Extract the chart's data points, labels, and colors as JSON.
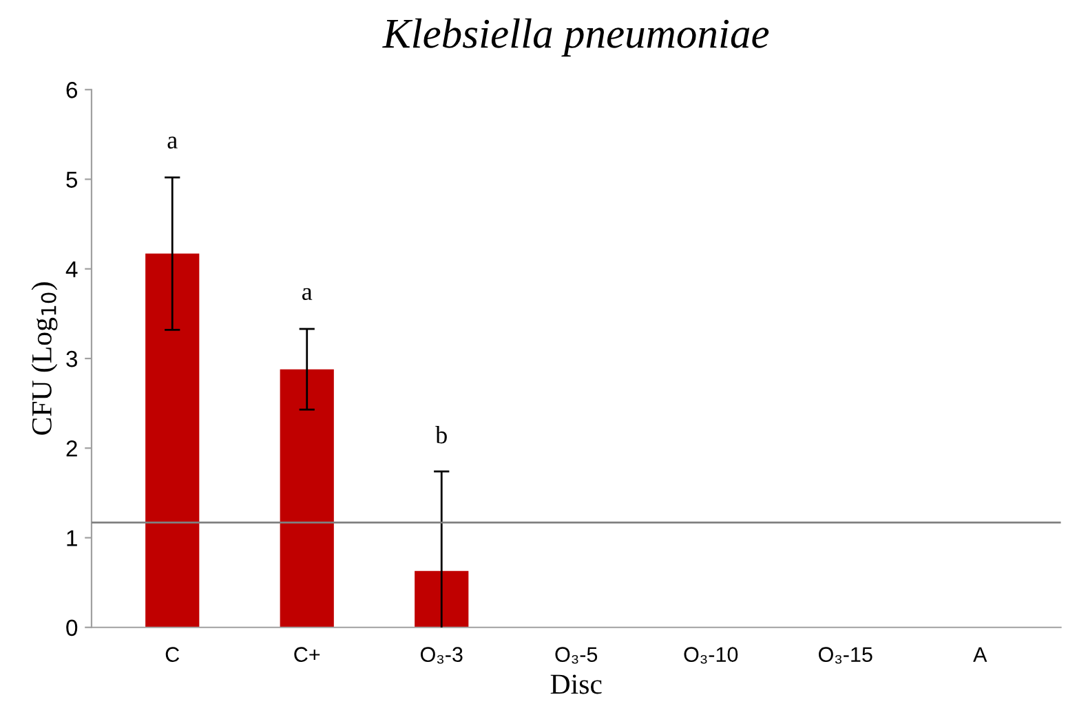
{
  "chart_data": {
    "type": "bar",
    "title": "Klebsiella pneumoniae",
    "xlabel": "Disc",
    "ylabel": "CFU (Log$_{10}$)",
    "categories": [
      "C",
      "C+",
      "O₃-3",
      "O₃-5",
      "O₃-10",
      "O₃-15",
      "A"
    ],
    "values": [
      4.17,
      2.88,
      0.63,
      0,
      0,
      0,
      0
    ],
    "errors": [
      0.85,
      0.45,
      1.11,
      null,
      null,
      null,
      null
    ],
    "color": "#c00000",
    "ylim": [
      0,
      6
    ],
    "yticks": [
      0,
      1,
      2,
      3,
      4,
      5,
      6
    ],
    "grid": false,
    "legend": false,
    "ref_lines": [
      {
        "axis": "y",
        "value": 1.17,
        "color": "#808080"
      }
    ],
    "annotations": [
      {
        "text": "a",
        "x": "C",
        "y": 5.03
      },
      {
        "text": "a",
        "x": "C+",
        "y": 3.34
      },
      {
        "text": "b",
        "x": "O₃-3",
        "y": 1.74
      }
    ]
  }
}
